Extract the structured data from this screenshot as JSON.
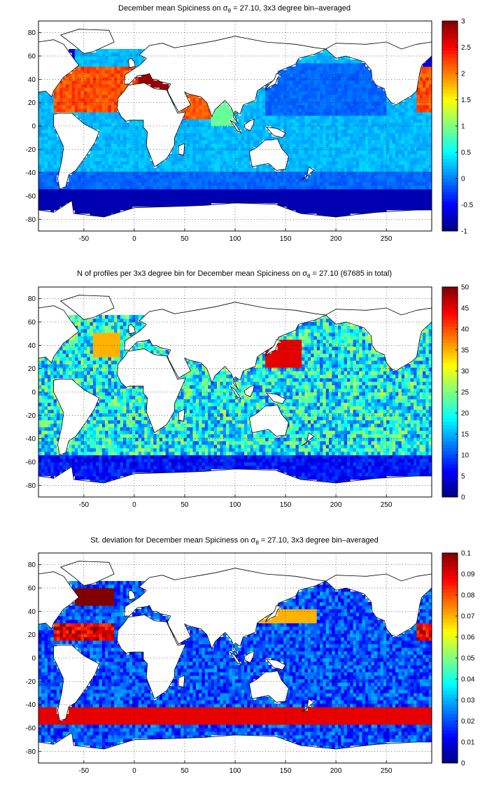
{
  "figure": {
    "panels": [
      {
        "id": "spiciness",
        "title_pre": "December mean Spiciness on σ",
        "title_sub": "θ",
        "title_post": " = 27.10, 3x3 degree bin–averaged",
        "colorbar": {
          "min": -1,
          "max": 3,
          "ticks": [
            -1,
            -0.5,
            0,
            0.5,
            1,
            1.5,
            2,
            2.5,
            3
          ]
        }
      },
      {
        "id": "profiles",
        "title_pre": "N of profiles per 3x3 degree bin for December mean Spiciness on σ",
        "title_sub": "θ",
        "title_post": " = 27.10 (67685 in total)",
        "colorbar": {
          "min": 0,
          "max": 50,
          "ticks": [
            0,
            5,
            10,
            15,
            20,
            25,
            30,
            35,
            40,
            45,
            50
          ]
        }
      },
      {
        "id": "stdev",
        "title_pre": "St. deviation for December mean Spiciness on σ",
        "title_sub": "θ",
        "title_post": " = 27.10, 3x3 degree bin–averaged",
        "colorbar": {
          "min": 0,
          "max": 0.1,
          "ticks": [
            0,
            0.01,
            0.02,
            0.03,
            0.04,
            0.05,
            0.06,
            0.07,
            0.08,
            0.09,
            0.1
          ]
        }
      }
    ],
    "x_axis": {
      "min": -95,
      "max": 295,
      "ticks": [
        -50,
        0,
        50,
        100,
        150,
        200,
        250
      ]
    },
    "y_axis": {
      "min": -90,
      "max": 90,
      "ticks": [
        -80,
        -60,
        -40,
        -20,
        0,
        20,
        40,
        60,
        80
      ]
    },
    "grid": "dotted",
    "colormap": "jet"
  }
}
